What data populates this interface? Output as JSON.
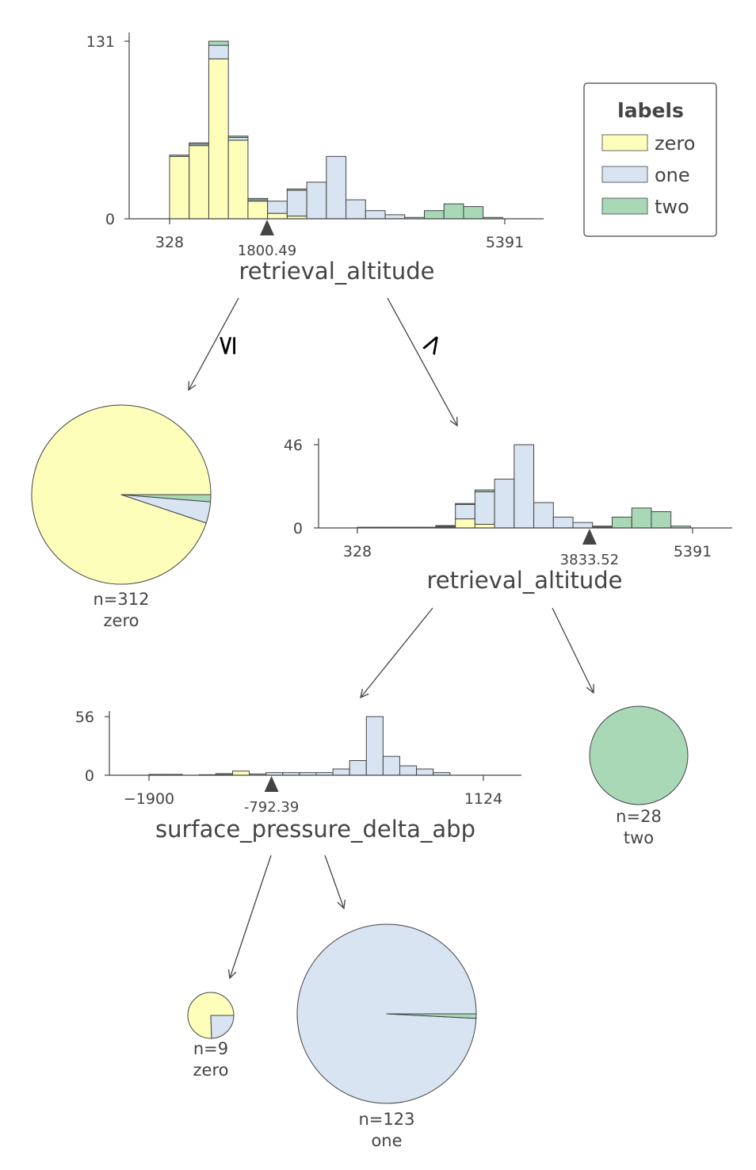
{
  "colors": {
    "zero": "#fefebb",
    "one": "#d8e4f2",
    "two": "#a9d8b7",
    "bar_stroke": "#444444",
    "axis": "#444444"
  },
  "legend": {
    "title": "labels",
    "items": [
      {
        "label": "zero",
        "color": "#fefebb"
      },
      {
        "label": "one",
        "color": "#d8e4f2"
      },
      {
        "label": "two",
        "color": "#a9d8b7"
      }
    ]
  },
  "edges": {
    "left_label": "≤",
    "right_label": ">"
  },
  "chart_data": [
    {
      "type": "bar",
      "id": "root",
      "feature": "retrieval_altitude",
      "split_label": "1800.49",
      "split_value": 1800.49,
      "xlim": [
        328,
        5391
      ],
      "ylim": [
        0,
        131
      ],
      "x_ticks": [
        "328",
        "5391"
      ],
      "y_ticks": [
        "131",
        "0"
      ],
      "bin_width": 296,
      "series_order": [
        "zero",
        "one",
        "two"
      ],
      "bins": [
        {
          "x": 328,
          "zero": 46,
          "one": 0,
          "two": 1
        },
        {
          "x": 624,
          "zero": 54,
          "one": 1,
          "two": 1
        },
        {
          "x": 920,
          "zero": 118,
          "one": 10,
          "two": 3
        },
        {
          "x": 1216,
          "zero": 58,
          "one": 2,
          "two": 1
        },
        {
          "x": 1512,
          "zero": 13,
          "one": 1,
          "two": 1
        },
        {
          "x": 1808,
          "zero": 4,
          "one": 9,
          "two": 0
        },
        {
          "x": 2104,
          "zero": 2,
          "one": 19,
          "two": 1
        },
        {
          "x": 2400,
          "zero": 0,
          "one": 27,
          "two": 0
        },
        {
          "x": 2696,
          "zero": 0,
          "one": 46,
          "two": 0
        },
        {
          "x": 2992,
          "zero": 0,
          "one": 14,
          "two": 0
        },
        {
          "x": 3288,
          "zero": 0,
          "one": 6,
          "two": 0
        },
        {
          "x": 3584,
          "zero": 0,
          "one": 3,
          "two": 0
        },
        {
          "x": 3880,
          "zero": 0,
          "one": 1,
          "two": 0
        },
        {
          "x": 4176,
          "zero": 0,
          "one": 0,
          "two": 6
        },
        {
          "x": 4472,
          "zero": 0,
          "one": 0,
          "two": 11
        },
        {
          "x": 4768,
          "zero": 0,
          "one": 0,
          "two": 9
        },
        {
          "x": 5064,
          "zero": 0,
          "one": 0,
          "two": 1
        }
      ]
    },
    {
      "type": "bar",
      "id": "node-right",
      "feature": "retrieval_altitude",
      "split_label": "3833.52",
      "split_value": 3833.52,
      "xlim": [
        328,
        5391
      ],
      "ylim": [
        0,
        46
      ],
      "x_ticks": [
        "328",
        "5391"
      ],
      "y_ticks": [
        "46",
        "0"
      ],
      "bin_width": 296,
      "series_order": [
        "zero",
        "one",
        "two"
      ],
      "bins": [
        {
          "x": 328,
          "zero": 0,
          "one": 0,
          "two": 0.4
        },
        {
          "x": 624,
          "zero": 0,
          "one": 0,
          "two": 0.4
        },
        {
          "x": 920,
          "zero": 0,
          "one": 0,
          "two": 0.4
        },
        {
          "x": 1216,
          "zero": 0,
          "one": 0,
          "two": 0.4
        },
        {
          "x": 1512,
          "zero": 0.5,
          "one": 0.5,
          "two": 0.3
        },
        {
          "x": 1808,
          "zero": 5,
          "one": 8,
          "two": 0.5
        },
        {
          "x": 2104,
          "zero": 2,
          "one": 18,
          "two": 1
        },
        {
          "x": 2400,
          "zero": 0,
          "one": 27,
          "two": 0
        },
        {
          "x": 2696,
          "zero": 0,
          "one": 46,
          "two": 0
        },
        {
          "x": 2992,
          "zero": 0,
          "one": 14,
          "two": 0
        },
        {
          "x": 3288,
          "zero": 0,
          "one": 6,
          "two": 0
        },
        {
          "x": 3584,
          "zero": 0,
          "one": 3,
          "two": 0
        },
        {
          "x": 3880,
          "zero": 0,
          "one": 0.5,
          "two": 0.5
        },
        {
          "x": 4176,
          "zero": 0,
          "one": 0,
          "two": 6
        },
        {
          "x": 4472,
          "zero": 0,
          "one": 0,
          "two": 11
        },
        {
          "x": 4768,
          "zero": 0,
          "one": 0,
          "two": 9
        },
        {
          "x": 5064,
          "zero": 0,
          "one": 0,
          "two": 1
        }
      ]
    },
    {
      "type": "bar",
      "id": "node-left-inner",
      "feature": "surface_pressure_delta_abp",
      "split_label": "-792.39",
      "split_value": -792.39,
      "xlim": [
        -1900,
        1124
      ],
      "ylim": [
        0,
        56
      ],
      "x_ticks": [
        "−1900",
        "1124"
      ],
      "y_ticks": [
        "56",
        "0"
      ],
      "bin_width": 151.2,
      "series_order": [
        "zero",
        "one",
        "two"
      ],
      "bins": [
        {
          "x": -1900,
          "zero": 0,
          "one": 0.8,
          "two": 0
        },
        {
          "x": -1748.8,
          "zero": 0,
          "one": 0.8,
          "two": 0
        },
        {
          "x": -1597.6,
          "zero": 0,
          "one": 0,
          "two": 0
        },
        {
          "x": -1446.4,
          "zero": 0,
          "one": 0.5,
          "two": 0
        },
        {
          "x": -1295.2,
          "zero": 0.6,
          "one": 1,
          "two": 0
        },
        {
          "x": -1144,
          "zero": 4,
          "one": 0,
          "two": 0
        },
        {
          "x": -992.8,
          "zero": 0,
          "one": 1.2,
          "two": 0
        },
        {
          "x": -841.6,
          "zero": 0,
          "one": 2.5,
          "two": 0
        },
        {
          "x": -690.4,
          "zero": 0,
          "one": 2.5,
          "two": 0
        },
        {
          "x": -539.2,
          "zero": 0,
          "one": 2.5,
          "two": 0
        },
        {
          "x": -388,
          "zero": 0,
          "one": 2.5,
          "two": 0
        },
        {
          "x": -236.8,
          "zero": 0,
          "one": 6,
          "two": 0
        },
        {
          "x": -85.6,
          "zero": 0,
          "one": 14,
          "two": 0
        },
        {
          "x": 65.6,
          "zero": 0,
          "one": 56,
          "two": 0
        },
        {
          "x": 216.8,
          "zero": 0,
          "one": 18,
          "two": 0
        },
        {
          "x": 368,
          "zero": 0,
          "one": 9,
          "two": 0
        },
        {
          "x": 519.2,
          "zero": 0,
          "one": 6,
          "two": 0
        },
        {
          "x": 670.4,
          "zero": 0,
          "one": 2.5,
          "two": 0
        }
      ]
    },
    {
      "type": "pie",
      "id": "leaf-1",
      "n_label": "n=312",
      "class_label": "zero",
      "slices": [
        {
          "label": "zero",
          "value": 296
        },
        {
          "label": "one",
          "value": 12
        },
        {
          "label": "two",
          "value": 4
        }
      ]
    },
    {
      "type": "pie",
      "id": "leaf-2",
      "n_label": "n=28",
      "class_label": "two",
      "slices": [
        {
          "label": "zero",
          "value": 0
        },
        {
          "label": "one",
          "value": 0
        },
        {
          "label": "two",
          "value": 28
        }
      ]
    },
    {
      "type": "pie",
      "id": "leaf-3",
      "n_label": "n=9",
      "class_label": "zero",
      "slices": [
        {
          "label": "zero",
          "value": 6.8
        },
        {
          "label": "one",
          "value": 2.2
        },
        {
          "label": "two",
          "value": 0
        }
      ]
    },
    {
      "type": "pie",
      "id": "leaf-4",
      "n_label": "n=123",
      "class_label": "one",
      "slices": [
        {
          "label": "zero",
          "value": 0
        },
        {
          "label": "one",
          "value": 122
        },
        {
          "label": "two",
          "value": 1
        }
      ]
    }
  ]
}
